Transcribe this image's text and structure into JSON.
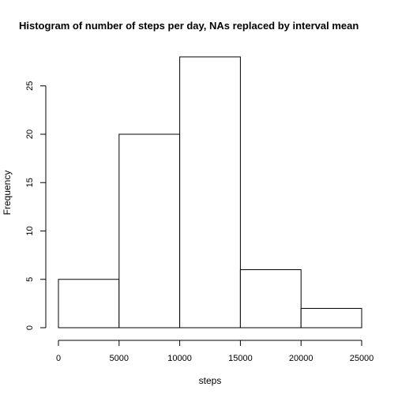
{
  "chart_data": {
    "type": "bar",
    "subtype": "histogram",
    "title": "Histogram of number of steps per day, NAs replaced by interval mean",
    "xlabel": "steps",
    "ylabel": "Frequency",
    "bins": [
      {
        "from": 0,
        "to": 5000,
        "count": 5
      },
      {
        "from": 5000,
        "to": 10000,
        "count": 20
      },
      {
        "from": 10000,
        "to": 15000,
        "count": 28
      },
      {
        "from": 15000,
        "to": 20000,
        "count": 6
      },
      {
        "from": 20000,
        "to": 25000,
        "count": 2
      }
    ],
    "x_ticks": [
      "0",
      "5000",
      "10000",
      "15000",
      "20000",
      "25000"
    ],
    "y_ticks": [
      "0",
      "5",
      "10",
      "15",
      "20",
      "25"
    ],
    "xlim": [
      0,
      25000
    ],
    "ylim": [
      0,
      28
    ],
    "grid": false,
    "legend": "none",
    "colors": {
      "bar_fill": "#ffffff",
      "bar_stroke": "#000000",
      "background": "#ffffff"
    }
  }
}
